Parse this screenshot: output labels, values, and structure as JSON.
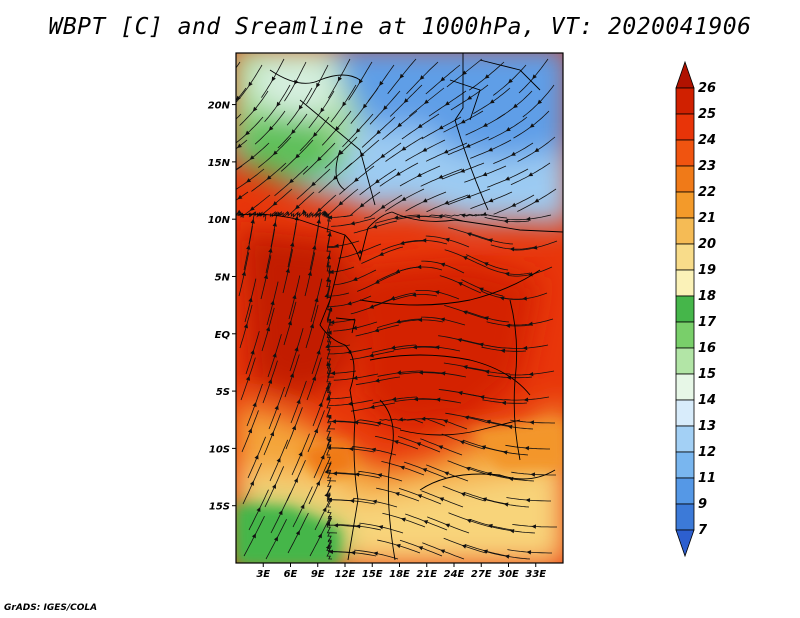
{
  "title": "WBPT [C] and Sreamline at 1000hPa, VT: 2020041906",
  "credit": "GrADS: IGES/COLA",
  "map": {
    "lon_range": [
      0,
      36
    ],
    "lat_range": [
      -20,
      24.5
    ],
    "x_ticks": [
      "3E",
      "6E",
      "9E",
      "12E",
      "15E",
      "18E",
      "21E",
      "24E",
      "27E",
      "30E",
      "33E"
    ],
    "x_tick_values": [
      3,
      6,
      9,
      12,
      15,
      18,
      21,
      24,
      27,
      30,
      33
    ],
    "y_ticks": [
      "20N",
      "15N",
      "10N",
      "5N",
      "EQ",
      "5S",
      "10S",
      "15S"
    ],
    "y_tick_values": [
      20,
      15,
      10,
      5,
      0,
      -5,
      -10,
      -15
    ],
    "field": "wet-bulb potential temperature",
    "overlay": "streamlines"
  },
  "colorbar": {
    "levels": [
      "26",
      "25",
      "24",
      "23",
      "22",
      "21",
      "20",
      "19",
      "18",
      "17",
      "16",
      "15",
      "14",
      "13",
      "12",
      "11",
      "9",
      "7"
    ],
    "colors": [
      "#b01200",
      "#d02000",
      "#e83408",
      "#f05410",
      "#f07a18",
      "#f39a2a",
      "#f5bb55",
      "#f8dc8a",
      "#fbf2b8",
      "#45b64a",
      "#79cf6a",
      "#b2e5a6",
      "#e7f7e7",
      "#d8ecfb",
      "#a3d0f5",
      "#79b6ef",
      "#5598e6",
      "#3c7ad8",
      "#2d5fcf"
    ]
  }
}
